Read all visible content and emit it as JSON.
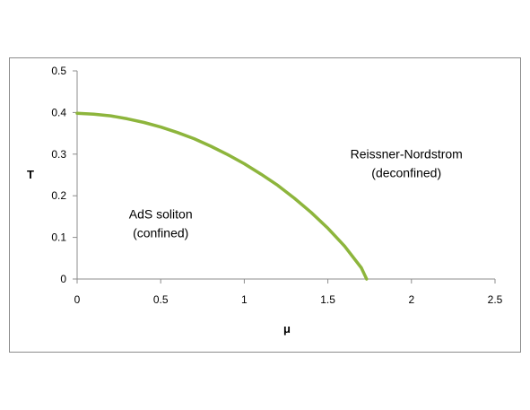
{
  "chart_data": {
    "type": "line",
    "title": "",
    "xlabel": "μ",
    "ylabel": "T",
    "xlim": [
      0,
      2.5
    ],
    "ylim": [
      0,
      0.5
    ],
    "x_ticks": [
      "0",
      "0.5",
      "1",
      "1.5",
      "2",
      "2.5"
    ],
    "y_ticks": [
      "0",
      "0.1",
      "0.2",
      "0.3",
      "0.4",
      "0.5"
    ],
    "grid": false,
    "legend": "none",
    "series": [
      {
        "color": "#8db53c",
        "points": [
          [
            0,
            0.398
          ],
          [
            0.1,
            0.396
          ],
          [
            0.2,
            0.392
          ],
          [
            0.3,
            0.385
          ],
          [
            0.4,
            0.376
          ],
          [
            0.5,
            0.365
          ],
          [
            0.6,
            0.352
          ],
          [
            0.7,
            0.337
          ],
          [
            0.8,
            0.319
          ],
          [
            0.9,
            0.299
          ],
          [
            1.0,
            0.277
          ],
          [
            1.1,
            0.252
          ],
          [
            1.2,
            0.225
          ],
          [
            1.3,
            0.194
          ],
          [
            1.4,
            0.16
          ],
          [
            1.5,
            0.122
          ],
          [
            1.6,
            0.079
          ],
          [
            1.7,
            0.027
          ],
          [
            1.732,
            0.0
          ]
        ]
      }
    ],
    "annotations": [
      {
        "lines": [
          "Reissner-Nordstrom",
          "(deconfined)"
        ],
        "x": 1.97,
        "y": 0.29
      },
      {
        "lines": [
          "AdS soliton",
          "(confined)"
        ],
        "x": 0.5,
        "y": 0.145
      }
    ]
  }
}
